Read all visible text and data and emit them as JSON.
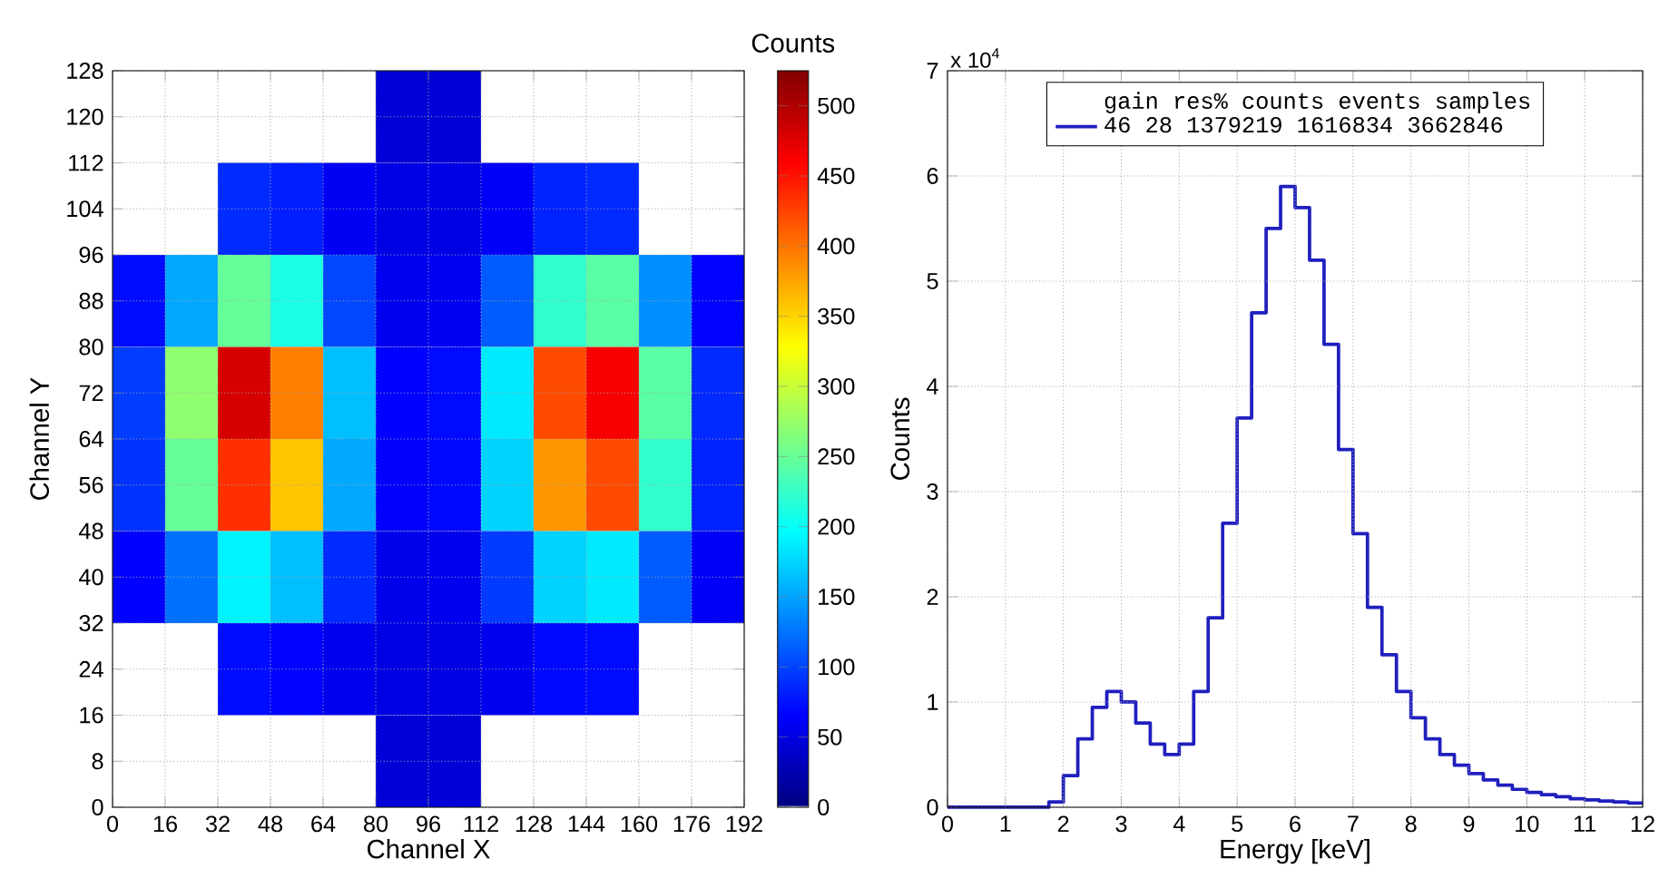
{
  "chart_data": [
    {
      "type": "heatmap",
      "xlabel": "Channel X",
      "ylabel": "Channel Y",
      "clabel": "Counts",
      "xlim": [
        0,
        192
      ],
      "ylim": [
        0,
        128
      ],
      "xticks": [
        0,
        16,
        32,
        48,
        64,
        80,
        96,
        112,
        128,
        144,
        160,
        176,
        192
      ],
      "yticks": [
        0,
        8,
        16,
        24,
        32,
        40,
        48,
        56,
        64,
        72,
        80,
        88,
        96,
        104,
        112,
        120,
        128
      ],
      "clim": [
        0,
        525
      ],
      "cticks": [
        0,
        50,
        100,
        150,
        200,
        250,
        300,
        350,
        400,
        450,
        500
      ],
      "grid": true,
      "cells": [
        [
          null,
          null,
          null,
          null,
          null,
          45,
          45,
          null,
          null,
          null,
          null,
          null
        ],
        [
          null,
          null,
          88,
          81,
          60,
          52,
          52,
          62,
          83,
          87,
          null,
          null
        ],
        [
          72,
          152,
          249,
          210,
          102,
          57,
          59,
          113,
          222,
          243,
          139,
          67
        ],
        [
          97,
          271,
          480,
          394,
          164,
          66,
          71,
          186,
          421,
          464,
          243,
          87
        ],
        [
          92,
          249,
          435,
          358,
          152,
          64,
          69,
          174,
          382,
          421,
          222,
          83
        ],
        [
          66,
          124,
          191,
          164,
          88,
          55,
          57,
          96,
          174,
          186,
          113,
          62
        ],
        [
          null,
          null,
          72,
          67,
          56,
          51,
          51,
          57,
          69,
          71,
          null,
          null
        ],
        [
          null,
          null,
          null,
          null,
          null,
          45,
          45,
          null,
          null,
          null,
          null,
          null
        ]
      ]
    },
    {
      "type": "histogram",
      "xlabel": "Energy [keV]",
      "ylabel": "Counts",
      "annotations": [
        "x 10$^{4}$"
      ],
      "xlim": [
        0,
        12
      ],
      "ylim": [
        0,
        7
      ],
      "xticks": [
        0,
        1,
        2,
        3,
        4,
        5,
        6,
        7,
        8,
        9,
        10,
        11,
        12
      ],
      "yticks": [
        0,
        1,
        2,
        3,
        4,
        5,
        6,
        7
      ],
      "grid": true,
      "legend": "top",
      "legend_title": "gain res% counts events samples",
      "bins": [
        0,
        0.25,
        0.5,
        0.75,
        1,
        1.25,
        1.5,
        1.75,
        2,
        2.25,
        2.5,
        2.75,
        3,
        3.25,
        3.5,
        3.75,
        4,
        4.25,
        4.5,
        4.75,
        5,
        5.25,
        5.5,
        5.75,
        6,
        6.25,
        6.5,
        6.75,
        7,
        7.25,
        7.5,
        7.75,
        8,
        8.25,
        8.5,
        8.75,
        9,
        9.25,
        9.5,
        9.75,
        10,
        10.25,
        10.5,
        10.75,
        11,
        11.25,
        11.5,
        11.75,
        12
      ],
      "series": [
        {
          "name": "46 28 1379219 1616834 3662846",
          "color": "#1f1fbf",
          "values": [
            0,
            0,
            0,
            0,
            0,
            0,
            0,
            0.05,
            0.3,
            0.65,
            0.95,
            1.1,
            1.0,
            0.8,
            0.6,
            0.5,
            0.6,
            1.1,
            1.8,
            2.7,
            3.7,
            4.7,
            5.5,
            5.9,
            5.7,
            5.2,
            4.4,
            3.4,
            2.6,
            1.9,
            1.45,
            1.1,
            0.85,
            0.65,
            0.5,
            0.4,
            0.32,
            0.26,
            0.21,
            0.17,
            0.14,
            0.12,
            0.1,
            0.08,
            0.07,
            0.06,
            0.05,
            0.04
          ]
        }
      ]
    }
  ]
}
